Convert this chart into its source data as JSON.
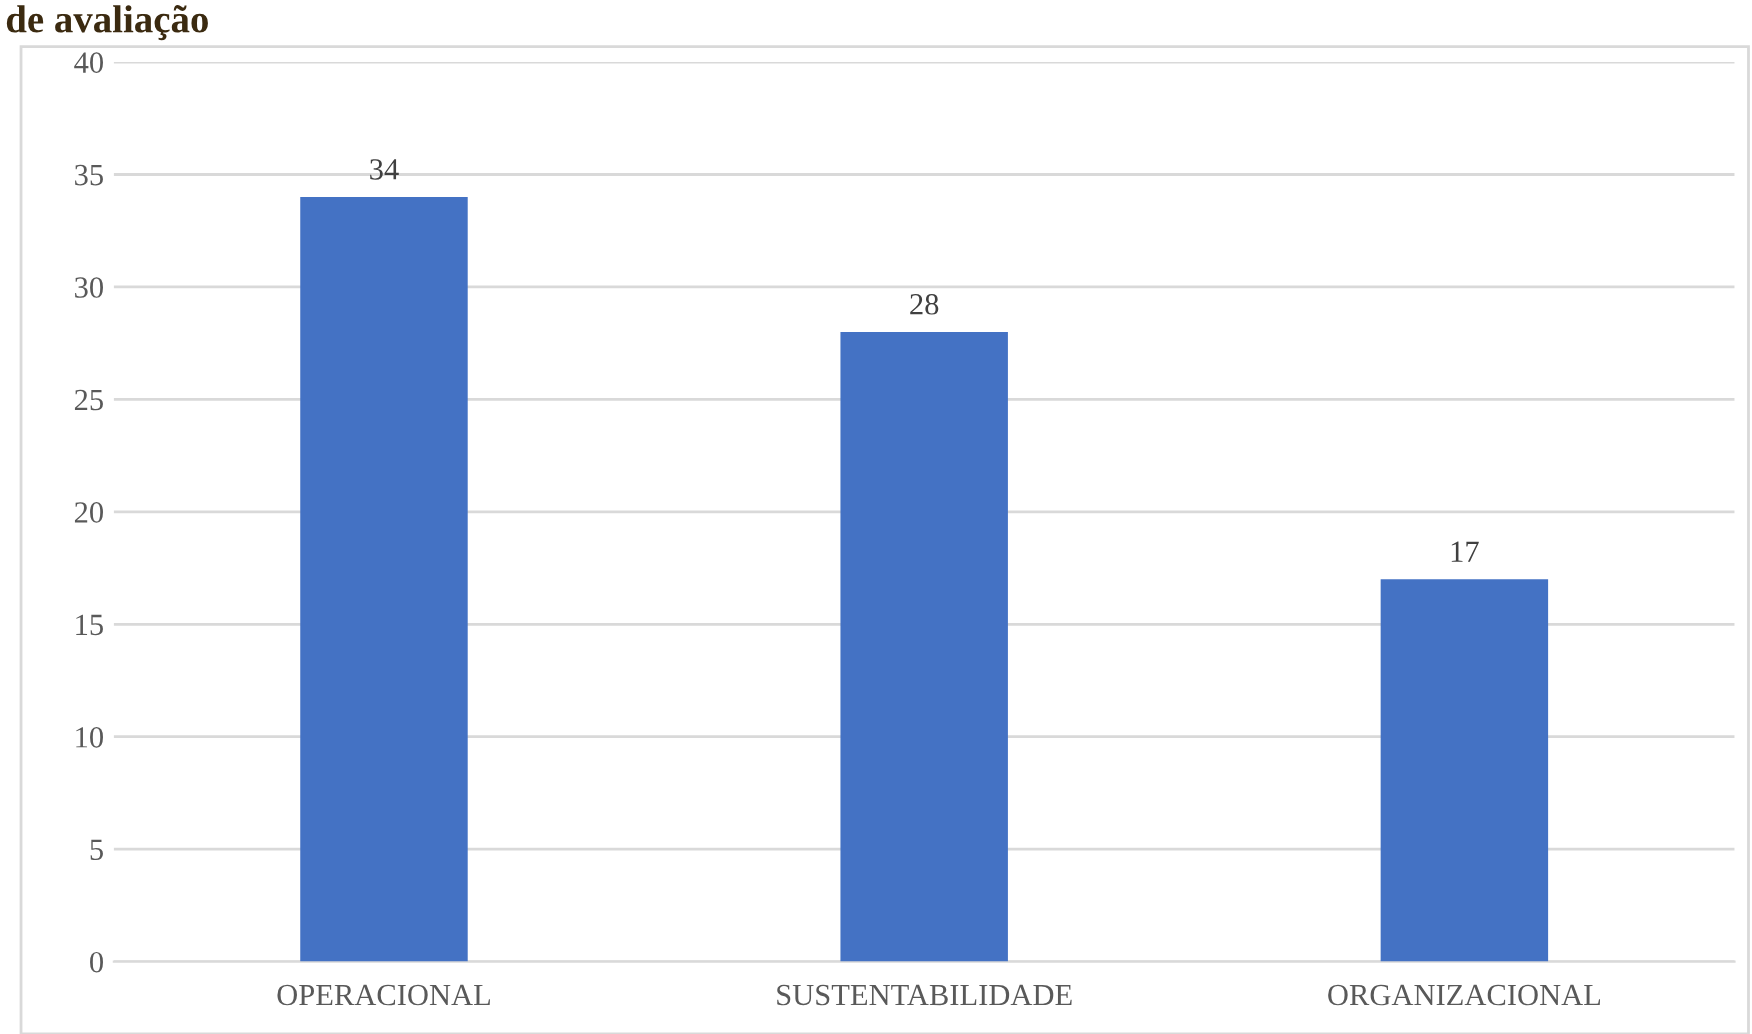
{
  "chart_data": {
    "type": "bar",
    "title": "de avaliação",
    "categories": [
      "OPERACIONAL",
      "SUSTENTABILIDADE",
      "ORGANIZACIONAL"
    ],
    "values": [
      34,
      28,
      17
    ],
    "color": "#4472c4",
    "data_labels": true,
    "ylim": [
      0,
      40
    ],
    "yticks": [
      0,
      5,
      10,
      15,
      20,
      25,
      30,
      35,
      40
    ],
    "grid": "y"
  }
}
